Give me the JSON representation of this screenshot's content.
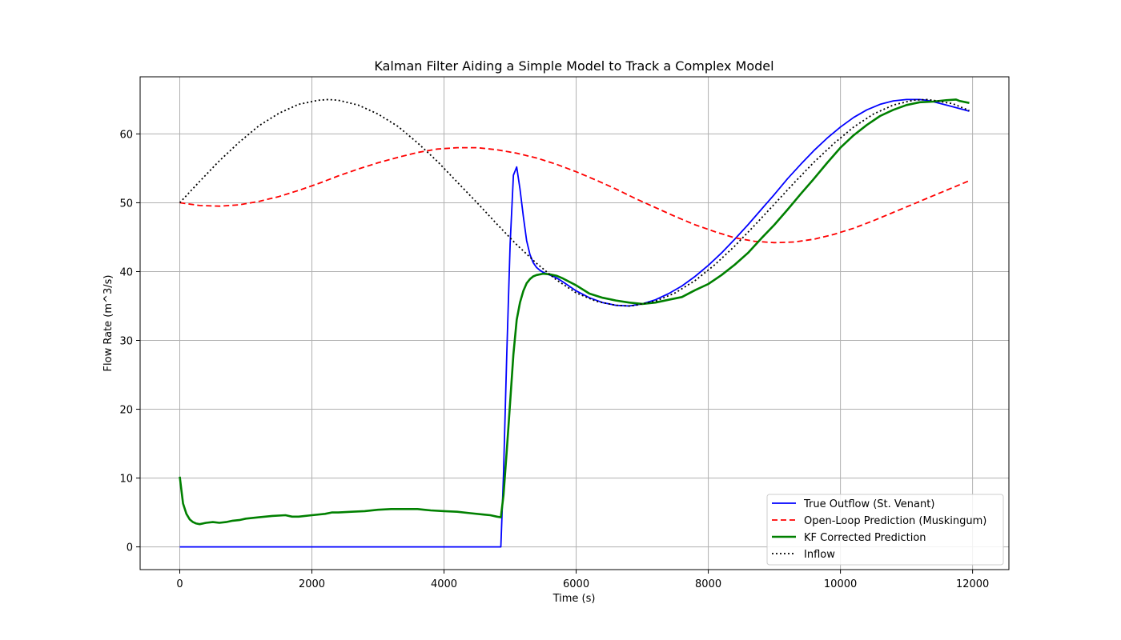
{
  "chart_data": {
    "type": "line",
    "title": "Kalman Filter Aiding a Simple Model to Track a Complex Model",
    "xlabel": "Time (s)",
    "ylabel": "Flow Rate (m^3/s)",
    "xlim": [
      -600,
      12550
    ],
    "ylim": [
      -3.3,
      68.3
    ],
    "xticks": [
      0,
      2000,
      4000,
      6000,
      8000,
      10000,
      12000
    ],
    "yticks": [
      0,
      10,
      20,
      30,
      40,
      50,
      60
    ],
    "grid": true,
    "legend_position": "lower-right",
    "series": [
      {
        "name": "True Outflow (St. Venant)",
        "color": "#0000ff",
        "style": "solid",
        "x": [
          0,
          1000,
          2000,
          3000,
          4000,
          4860,
          4900,
          4950,
          5000,
          5050,
          5100,
          5150,
          5200,
          5250,
          5300,
          5350,
          5400,
          5450,
          5500,
          5600,
          5700,
          5800,
          6000,
          6200,
          6400,
          6600,
          6800,
          7000,
          7200,
          7400,
          7600,
          7800,
          8000,
          8200,
          8400,
          8600,
          8800,
          9000,
          9200,
          9400,
          9600,
          9800,
          10000,
          10200,
          10400,
          10600,
          10800,
          11000,
          11200,
          11300,
          11400,
          11600,
          11800,
          11950
        ],
        "y": [
          0,
          0,
          0,
          0,
          0,
          0,
          10.5,
          28.0,
          44.0,
          54.0,
          55.2,
          52.0,
          48.0,
          44.5,
          42.5,
          41.3,
          40.6,
          40.2,
          39.9,
          39.5,
          39.1,
          38.5,
          37.2,
          36.2,
          35.5,
          35.1,
          35.0,
          35.3,
          35.9,
          36.8,
          37.9,
          39.3,
          40.9,
          42.7,
          44.7,
          46.8,
          49.0,
          51.2,
          53.5,
          55.6,
          57.6,
          59.4,
          61.0,
          62.4,
          63.5,
          64.3,
          64.8,
          65.0,
          65.0,
          64.9,
          64.7,
          64.2,
          63.7,
          63.3
        ]
      },
      {
        "name": "Open-Loop Prediction (Muskingum)",
        "color": "#ff0000",
        "style": "dashed",
        "x": [
          0,
          300,
          600,
          900,
          1200,
          1500,
          1800,
          2100,
          2400,
          2700,
          3000,
          3300,
          3600,
          3900,
          4200,
          4500,
          4800,
          5100,
          5400,
          5700,
          6000,
          6300,
          6600,
          6900,
          7200,
          7500,
          7800,
          8100,
          8400,
          8700,
          9000,
          9300,
          9600,
          9900,
          10200,
          10500,
          10800,
          11100,
          11400,
          11700,
          11950
        ],
        "y": [
          50.0,
          49.6,
          49.5,
          49.7,
          50.2,
          50.9,
          51.8,
          52.8,
          53.9,
          54.9,
          55.8,
          56.6,
          57.3,
          57.8,
          58.0,
          58.0,
          57.7,
          57.2,
          56.5,
          55.6,
          54.5,
          53.3,
          52.0,
          50.6,
          49.3,
          48.0,
          46.8,
          45.8,
          44.9,
          44.4,
          44.2,
          44.3,
          44.7,
          45.4,
          46.3,
          47.4,
          48.6,
          49.8,
          51.0,
          52.2,
          53.2
        ]
      },
      {
        "name": "KF Corrected Prediction",
        "color": "#008000",
        "style": "solid",
        "x": [
          0,
          50,
          100,
          150,
          200,
          250,
          300,
          400,
          500,
          600,
          700,
          800,
          900,
          1000,
          1200,
          1400,
          1600,
          1700,
          1800,
          2000,
          2200,
          2300,
          2400,
          2600,
          2800,
          3000,
          3200,
          3400,
          3600,
          3700,
          3800,
          4000,
          4200,
          4400,
          4600,
          4700,
          4800,
          4860,
          4900,
          4950,
          5000,
          5050,
          5100,
          5150,
          5200,
          5250,
          5300,
          5350,
          5400,
          5500,
          5600,
          5700,
          5800,
          5900,
          6000,
          6200,
          6400,
          6600,
          6800,
          7000,
          7200,
          7400,
          7600,
          7800,
          8000,
          8200,
          8400,
          8600,
          8800,
          9000,
          9200,
          9400,
          9600,
          9800,
          10000,
          10200,
          10400,
          10600,
          10800,
          11000,
          11200,
          11400,
          11600,
          11750,
          11800,
          11950
        ],
        "y": [
          10.2,
          6.3,
          4.8,
          4.0,
          3.6,
          3.4,
          3.3,
          3.5,
          3.6,
          3.5,
          3.6,
          3.8,
          3.9,
          4.1,
          4.3,
          4.5,
          4.6,
          4.4,
          4.4,
          4.6,
          4.8,
          5.0,
          5.0,
          5.1,
          5.2,
          5.4,
          5.5,
          5.5,
          5.5,
          5.4,
          5.3,
          5.2,
          5.1,
          4.9,
          4.7,
          4.6,
          4.4,
          4.3,
          7.5,
          14.0,
          21.0,
          28.0,
          33.0,
          35.5,
          37.2,
          38.3,
          38.9,
          39.3,
          39.5,
          39.7,
          39.6,
          39.4,
          39.0,
          38.5,
          38.0,
          36.8,
          36.2,
          35.8,
          35.5,
          35.3,
          35.5,
          35.9,
          36.3,
          37.3,
          38.2,
          39.5,
          41.0,
          42.7,
          44.8,
          46.8,
          49.0,
          51.3,
          53.5,
          55.8,
          58.0,
          59.8,
          61.3,
          62.6,
          63.5,
          64.2,
          64.6,
          64.7,
          64.9,
          65.0,
          64.8,
          64.5
        ]
      },
      {
        "name": "Inflow",
        "color": "#000000",
        "style": "dotted",
        "x": [
          0,
          300,
          600,
          900,
          1200,
          1500,
          1800,
          2100,
          2250,
          2400,
          2700,
          3000,
          3300,
          3600,
          3900,
          4200,
          4500,
          4800,
          5100,
          5400,
          5700,
          6000,
          6300,
          6600,
          6800,
          6900,
          7200,
          7500,
          7800,
          8100,
          8400,
          8700,
          9000,
          9300,
          9600,
          9900,
          10200,
          10500,
          10800,
          11100,
          11300,
          11400,
          11700,
          11950
        ],
        "y": [
          50.0,
          53.1,
          56.1,
          58.8,
          61.2,
          63.0,
          64.3,
          64.9,
          65.0,
          64.9,
          64.2,
          62.9,
          61.1,
          58.7,
          56.0,
          53.0,
          50.0,
          46.9,
          43.9,
          41.2,
          38.8,
          36.9,
          35.7,
          35.1,
          35.0,
          35.1,
          35.7,
          36.9,
          38.7,
          41.0,
          43.7,
          46.7,
          49.8,
          52.9,
          55.9,
          58.6,
          61.0,
          62.9,
          64.2,
          64.9,
          65.0,
          64.9,
          64.4,
          63.4
        ]
      }
    ]
  }
}
